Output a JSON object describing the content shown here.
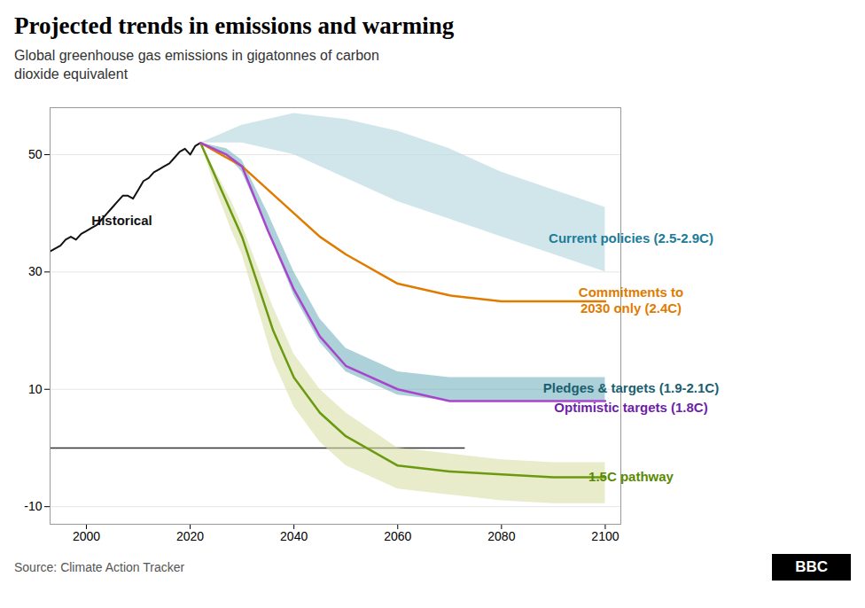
{
  "chart_data": {
    "type": "line",
    "title": "Projected trends in emissions and warming",
    "subtitle": "Global greenhouse gas emissions in gigatonnes of carbon\ndioxide equivalent",
    "source": "Source: Climate Action Tracker",
    "logo": "BBC",
    "xlim": [
      1993,
      2103
    ],
    "ylim": [
      -13,
      58
    ],
    "xticks": [
      2000,
      2020,
      2040,
      2060,
      2080,
      2100
    ],
    "yticks": [
      -10,
      10,
      30,
      50
    ],
    "grid": "y",
    "series": [
      {
        "name": "Current policies (2.5-2.9C)",
        "type": "area",
        "color": "#b8d8e0",
        "label_color": "#1b7c99",
        "x": [
          2022,
          2030,
          2040,
          2050,
          2060,
          2070,
          2080,
          2090,
          2100
        ],
        "upper": [
          52,
          55,
          57,
          56,
          54,
          51,
          47,
          44,
          41
        ],
        "lower": [
          52,
          52,
          50,
          46,
          42,
          39,
          36,
          33,
          30
        ]
      },
      {
        "name": "Pledges & targets (1.9-2.1C)",
        "type": "area",
        "color": "#6aacb8",
        "label_color": "#1a5f70",
        "x": [
          2022,
          2027,
          2030,
          2035,
          2040,
          2045,
          2050,
          2060,
          2070,
          2080,
          2090,
          2100
        ],
        "upper": [
          52,
          51,
          49,
          40,
          30,
          22,
          17,
          13,
          12,
          12,
          12,
          12
        ],
        "lower": [
          52,
          50,
          47,
          37,
          26,
          18,
          13,
          9,
          8,
          8,
          8,
          8
        ]
      },
      {
        "name": "1.5C pathway",
        "type": "area",
        "color": "#d8dfa8",
        "line_color": "#6b9a10",
        "label_color": "#5a8a00",
        "x": [
          2022,
          2025,
          2028,
          2030,
          2033,
          2036,
          2040,
          2045,
          2050,
          2060,
          2070,
          2080,
          2090,
          2100
        ],
        "values": [
          52,
          46,
          40,
          36,
          28,
          20,
          12,
          6,
          2,
          -3,
          -4,
          -4.5,
          -5,
          -5
        ],
        "upper": [
          52,
          47,
          42,
          38,
          31,
          24,
          16,
          10,
          6,
          0,
          -1,
          -2,
          -2.5,
          -2.5
        ],
        "lower": [
          52,
          44,
          37,
          33,
          24,
          15,
          7,
          1,
          -3,
          -7,
          -8,
          -9,
          -9.5,
          -9.5
        ]
      },
      {
        "type": "line",
        "color": "#111111",
        "x": [
          1993,
          1994,
          1995,
          1996,
          1997,
          1998,
          1999,
          2000,
          2001,
          2002,
          2003,
          2004,
          2005,
          2006,
          2007,
          2008,
          2009,
          2010,
          2011,
          2012,
          2013,
          2014,
          2015,
          2016,
          2017,
          2018,
          2019,
          2020,
          2021,
          2022
        ],
        "values": [
          33.5,
          34.0,
          34.5,
          35.5,
          36.0,
          35.5,
          36.5,
          37.0,
          37.5,
          38.0,
          39.0,
          40.0,
          41.0,
          42.0,
          43.0,
          43.0,
          42.5,
          44.0,
          45.5,
          46.0,
          47.0,
          47.5,
          48.0,
          48.5,
          49.5,
          50.5,
          51.0,
          50.0,
          51.5,
          52.0
        ]
      },
      {
        "name": "Commitments to\n2030 only (2.4C)",
        "type": "line",
        "color": "#e07b00",
        "label_color": "#e07b00",
        "x": [
          2022,
          2030,
          2035,
          2040,
          2045,
          2050,
          2060,
          2070,
          2080,
          2090,
          2100
        ],
        "values": [
          52,
          48,
          44,
          40,
          36,
          33,
          28,
          26,
          25,
          25,
          25
        ]
      },
      {
        "name": "Optimistic targets (1.8C)",
        "type": "line",
        "color": "#aa44cc",
        "label_color": "#6b1fa8",
        "x": [
          2022,
          2027,
          2030,
          2035,
          2040,
          2045,
          2050,
          2060,
          2070,
          2080,
          2090,
          2100
        ],
        "values": [
          52,
          50,
          48,
          37,
          27,
          19,
          14,
          10,
          8,
          8,
          8,
          8
        ]
      }
    ],
    "reference_lines": [
      {
        "y": 0,
        "x": [
          1993,
          2073
        ],
        "color": "#333333"
      }
    ],
    "annotations": [
      {
        "text": "Historical",
        "x": 2001,
        "y": 38,
        "color": "#111111"
      }
    ]
  }
}
